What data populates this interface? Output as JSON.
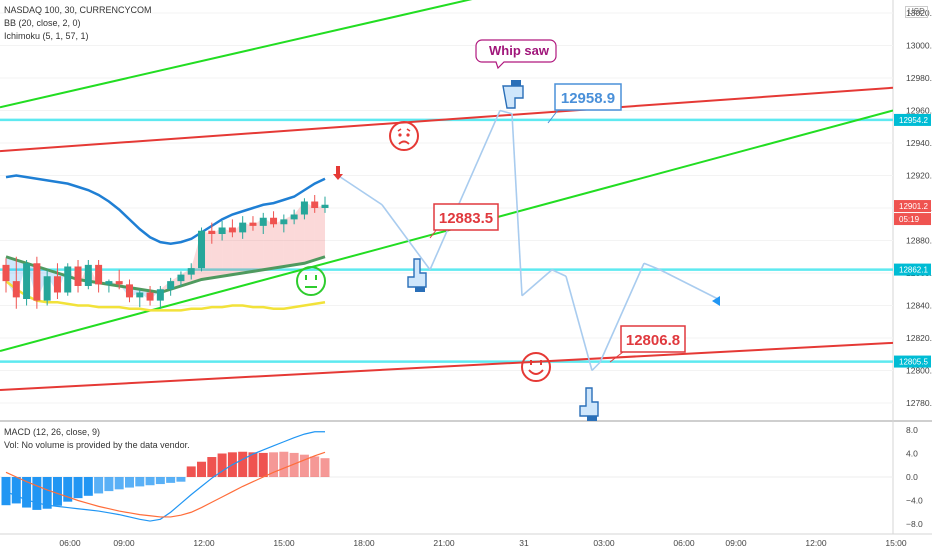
{
  "header": {
    "symbol": "NASDAQ 100, 30, CURRENCYCOM",
    "indicators": [
      "BB (20, close, 2, 0)",
      "Ichimoku (5, 1, 57, 1)"
    ],
    "currency": "USD"
  },
  "macd_header": {
    "title": "MACD (12, 26, close, 9)",
    "volume_note": "Vol: No volume is provided by the data vendor."
  },
  "price_tags": [
    {
      "value": "12954.2",
      "color": "#00bcd4"
    },
    {
      "value": "12901.2",
      "color": "#ef5350"
    },
    {
      "value": "05:19",
      "color": "#ef5350"
    },
    {
      "value": "12862.1",
      "color": "#00bcd4"
    },
    {
      "value": "12805.5",
      "color": "#00bcd4"
    }
  ],
  "annotations": {
    "whip_saw": "Whip saw",
    "level_top": "12958.9",
    "level_mid": "12883.5",
    "level_low": "12806.8"
  },
  "chart_data": [
    {
      "type": "candlestick",
      "title": "NASDAQ 100, 30, CURRENCYCOM",
      "y_axis": {
        "ticks": [
          13020,
          13000,
          12980,
          12960,
          12940,
          12920,
          12900,
          12880,
          12860,
          12840,
          12820,
          12800,
          12780
        ],
        "labels": [
          "13020.0",
          "13000.0",
          "12980.0",
          "12960.0",
          "12940.0",
          "12920.0",
          "12900.0",
          "12880.0",
          "12860.0",
          "12840.0",
          "12820.0",
          "12800.0",
          "12780.0"
        ],
        "range": [
          12770,
          13025
        ]
      },
      "x_axis": {
        "labels": [
          "06:00",
          "09:00",
          "12:00",
          "15:00",
          "18:00",
          "21:00",
          "31",
          "03:00",
          "06:00",
          "09:00",
          "12:00",
          "15:00"
        ]
      },
      "candles": [
        {
          "o": 12865,
          "h": 12869,
          "l": 12848,
          "c": 12855
        },
        {
          "o": 12855,
          "h": 12870,
          "l": 12838,
          "c": 12845
        },
        {
          "o": 12844,
          "h": 12868,
          "l": 12840,
          "c": 12866
        },
        {
          "o": 12866,
          "h": 12870,
          "l": 12838,
          "c": 12843
        },
        {
          "o": 12843,
          "h": 12862,
          "l": 12840,
          "c": 12858
        },
        {
          "o": 12858,
          "h": 12866,
          "l": 12844,
          "c": 12848
        },
        {
          "o": 12848,
          "h": 12866,
          "l": 12846,
          "c": 12864
        },
        {
          "o": 12864,
          "h": 12868,
          "l": 12848,
          "c": 12852
        },
        {
          "o": 12852,
          "h": 12868,
          "l": 12850,
          "c": 12865
        },
        {
          "o": 12865,
          "h": 12868,
          "l": 12848,
          "c": 12853
        },
        {
          "o": 12853,
          "h": 12856,
          "l": 12848,
          "c": 12855
        },
        {
          "o": 12855,
          "h": 12862,
          "l": 12850,
          "c": 12853
        },
        {
          "o": 12853,
          "h": 12856,
          "l": 12842,
          "c": 12845
        },
        {
          "o": 12845,
          "h": 12850,
          "l": 12839,
          "c": 12848
        },
        {
          "o": 12848,
          "h": 12852,
          "l": 12840,
          "c": 12843
        },
        {
          "o": 12843,
          "h": 12852,
          "l": 12838,
          "c": 12850
        },
        {
          "o": 12850,
          "h": 12857,
          "l": 12846,
          "c": 12855
        },
        {
          "o": 12855,
          "h": 12861,
          "l": 12852,
          "c": 12859
        },
        {
          "o": 12859,
          "h": 12866,
          "l": 12856,
          "c": 12863
        },
        {
          "o": 12863,
          "h": 12888,
          "l": 12861,
          "c": 12886
        },
        {
          "o": 12886,
          "h": 12891,
          "l": 12878,
          "c": 12884
        },
        {
          "o": 12884,
          "h": 12892,
          "l": 12880,
          "c": 12888
        },
        {
          "o": 12888,
          "h": 12893,
          "l": 12882,
          "c": 12885
        },
        {
          "o": 12885,
          "h": 12895,
          "l": 12881,
          "c": 12891
        },
        {
          "o": 12891,
          "h": 12895,
          "l": 12886,
          "c": 12889
        },
        {
          "o": 12889,
          "h": 12897,
          "l": 12884,
          "c": 12894
        },
        {
          "o": 12894,
          "h": 12898,
          "l": 12888,
          "c": 12890
        },
        {
          "o": 12890,
          "h": 12896,
          "l": 12885,
          "c": 12893
        },
        {
          "o": 12893,
          "h": 12899,
          "l": 12890,
          "c": 12896
        },
        {
          "o": 12896,
          "h": 12906,
          "l": 12893,
          "c": 12904
        },
        {
          "o": 12904,
          "h": 12908,
          "l": 12897,
          "c": 12900
        },
        {
          "o": 12900,
          "h": 12907,
          "l": 12897,
          "c": 12902
        }
      ],
      "bb_upper": [
        12919,
        12920,
        12919,
        12918,
        12917,
        12916,
        12915,
        12913,
        12911,
        12908,
        12904,
        12899,
        12893,
        12887,
        12882,
        12879,
        12878,
        12879,
        12881,
        12885,
        12889,
        12893,
        12896,
        12898,
        12900,
        12902,
        12903,
        12905,
        12907,
        12911,
        12915,
        12918
      ],
      "ichimoku_line": [
        12870,
        12868,
        12866,
        12864,
        12862,
        12860,
        12858,
        12856,
        12855,
        12854,
        12853,
        12852,
        12851,
        12850,
        12849,
        12848,
        12850,
        12852,
        12854,
        12856,
        12857,
        12858,
        12859,
        12860,
        12861,
        12862,
        12863,
        12864,
        12865,
        12866,
        12868,
        12870
      ],
      "bb_lower": [
        12855,
        12850,
        12846,
        12843,
        12842,
        12842,
        12841,
        12840,
        12840,
        12839,
        12839,
        12839,
        12838,
        12838,
        12837,
        12837,
        12837,
        12837,
        12838,
        12838,
        12839,
        12839,
        12840,
        12840,
        12839,
        12839,
        12838,
        12838,
        12839,
        12840,
        12841,
        12842
      ],
      "trendlines": {
        "green_upper": [
          [
            12962,
            13040
          ]
        ],
        "red_upper": [
          12935,
          12974
        ],
        "green_lower": [
          12812,
          12960
        ],
        "red_lower": [
          12788,
          12817
        ],
        "horizontal_levels": [
          12954.2,
          12862.1,
          12805.5
        ]
      },
      "projection_path": [
        12920,
        12902,
        12862,
        12960,
        12958,
        12846,
        12862,
        12858,
        12800,
        12805,
        12866,
        12862,
        12844
      ]
    },
    {
      "type": "bar",
      "title": "MACD (12, 26, close, 9)",
      "y_axis": {
        "ticks": [
          8,
          4,
          0,
          -4,
          -8
        ],
        "labels": [
          "8.0",
          "4.0",
          "0.0",
          "−4.0",
          "−8.0"
        ],
        "range": [
          -9,
          9
        ]
      },
      "histogram": [
        -4.8,
        -4.5,
        -5.2,
        -5.6,
        -5.4,
        -4.9,
        -4.2,
        -3.6,
        -3.2,
        -2.8,
        -2.4,
        -2.1,
        -1.8,
        -1.6,
        -1.4,
        -1.2,
        -1.0,
        -0.8,
        1.8,
        2.6,
        3.4,
        4.0,
        4.2,
        4.3,
        4.2,
        4.1,
        4.2,
        4.3,
        4.1,
        3.8,
        3.5,
        3.2
      ],
      "macd_line": [
        -2.5,
        -3.2,
        -3.9,
        -4.4,
        -4.8,
        -5.0,
        -5.2,
        -5.4,
        -5.6,
        -5.8,
        -6.1,
        -6.4,
        -6.8,
        -7.2,
        -7.5,
        -7.2,
        -6.0,
        -4.5,
        -3.0,
        -1.6,
        -0.2,
        1.0,
        2.1,
        3.0,
        3.9,
        4.6,
        5.3,
        6.0,
        6.7,
        7.3,
        7.7,
        7.7
      ],
      "signal_line": [
        0.8,
        0.0,
        -0.8,
        -1.5,
        -2.2,
        -2.8,
        -3.4,
        -4.0,
        -4.5,
        -5.0,
        -5.4,
        -5.8,
        -6.1,
        -6.4,
        -6.6,
        -6.8,
        -6.8,
        -6.5,
        -6.0,
        -5.2,
        -4.3,
        -3.4,
        -2.5,
        -1.6,
        -0.8,
        0.0,
        0.8,
        1.5,
        2.2,
        2.9,
        3.6,
        4.2
      ]
    }
  ]
}
